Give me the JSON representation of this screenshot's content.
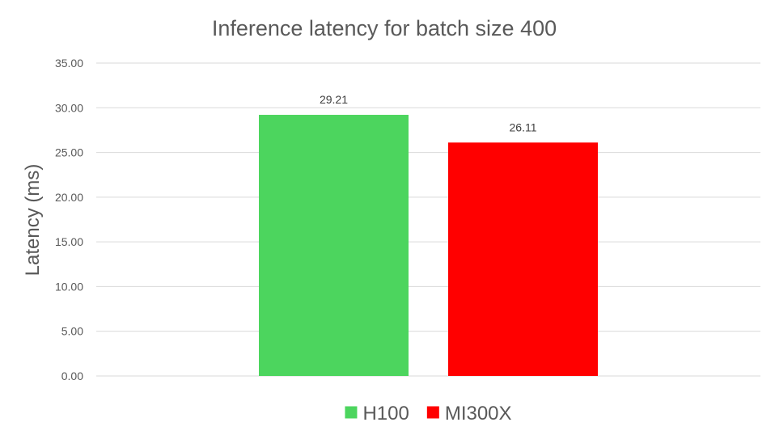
{
  "chart_data": {
    "type": "bar",
    "title": "Inference latency for batch size 400",
    "xlabel": "",
    "ylabel": "Latency  (ms)",
    "ylim": [
      0,
      35
    ],
    "ytick_step": 5,
    "ytick_labels": [
      "0.00",
      "5.00",
      "10.00",
      "15.00",
      "20.00",
      "25.00",
      "30.00",
      "35.00"
    ],
    "grid": true,
    "legend_position": "bottom",
    "series": [
      {
        "name": "H100",
        "value": 29.21,
        "label": "29.21",
        "color": "#4cd55e"
      },
      {
        "name": "MI300X",
        "value": 26.11,
        "label": "26.11",
        "color": "#ff0000"
      }
    ]
  }
}
